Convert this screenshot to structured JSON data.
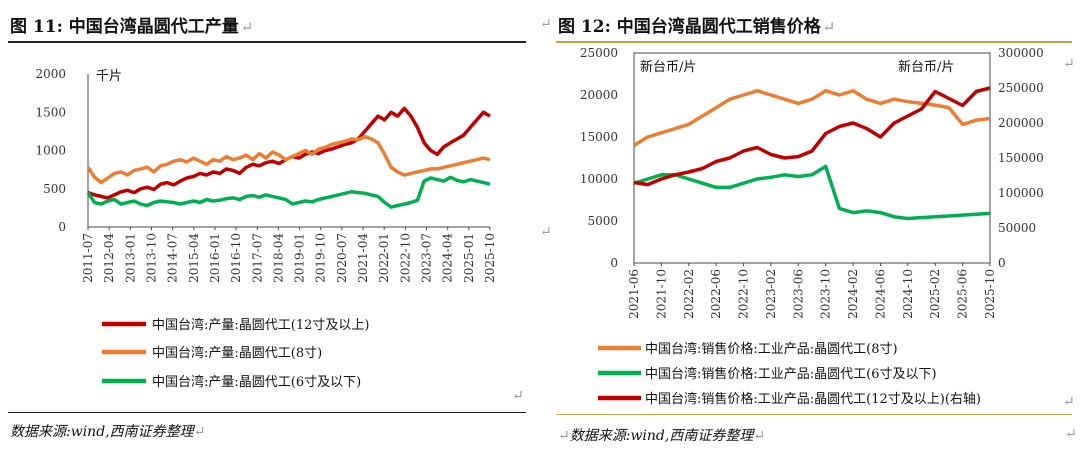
{
  "left": {
    "figure_label": "图 11:",
    "figure_title": "中国台湾晶圆代工产量",
    "return_mark": "↵",
    "source": "数据来源:wind,西南证券整理",
    "chart_data": {
      "type": "line",
      "unit": "千片",
      "ylim": [
        0,
        2000
      ],
      "yticks": [
        0,
        500,
        1000,
        1500,
        2000
      ],
      "x_tick_labels": [
        "2011-07",
        "2012-04",
        "2013-01",
        "2013-10",
        "2014-07",
        "2015-04",
        "2016-01",
        "2016-10",
        "2017-07",
        "2018-04",
        "2019-01",
        "2019-10",
        "2020-07",
        "2021-04",
        "2022-01",
        "2022-10",
        "2023-07",
        "2024-04",
        "2025-01",
        "2025-10"
      ],
      "series": [
        {
          "name": "中国台湾:产量:晶圆代工(12寸及以上)",
          "color": "#c00000",
          "values": [
            450,
            420,
            400,
            380,
            420,
            460,
            480,
            450,
            500,
            520,
            490,
            560,
            580,
            550,
            600,
            640,
            660,
            700,
            680,
            720,
            700,
            760,
            740,
            700,
            780,
            820,
            800,
            840,
            860,
            830,
            880,
            920,
            900,
            950,
            980,
            960,
            1000,
            1020,
            1050,
            1080,
            1100,
            1150,
            1250,
            1350,
            1450,
            1400,
            1500,
            1450,
            1550,
            1450,
            1300,
            1100,
            1000,
            950,
            1050,
            1100,
            1150,
            1200,
            1300,
            1400,
            1500,
            1450
          ]
        },
        {
          "name": "中国台湾:产量:晶圆代工(8寸)",
          "color": "#ed7d31",
          "values": [
            780,
            650,
            580,
            640,
            700,
            720,
            680,
            740,
            760,
            780,
            720,
            800,
            820,
            860,
            880,
            850,
            900,
            860,
            820,
            880,
            860,
            920,
            880,
            900,
            940,
            880,
            960,
            900,
            980,
            940,
            880,
            920,
            960,
            1000,
            950,
            1020,
            1040,
            1080,
            1100,
            1120,
            1150,
            1140,
            1180,
            1150,
            1100,
            950,
            780,
            720,
            680,
            700,
            720,
            740,
            760,
            760,
            780,
            800,
            820,
            840,
            860,
            880,
            900,
            880
          ]
        },
        {
          "name": "中国台湾:产量:晶圆代工(6寸及以下)",
          "color": "#00b050",
          "values": [
            450,
            320,
            300,
            340,
            360,
            300,
            320,
            340,
            300,
            280,
            320,
            340,
            330,
            320,
            300,
            320,
            340,
            320,
            360,
            340,
            350,
            370,
            380,
            360,
            400,
            410,
            390,
            420,
            400,
            380,
            360,
            300,
            320,
            340,
            330,
            360,
            380,
            400,
            420,
            440,
            460,
            450,
            440,
            420,
            400,
            320,
            260,
            280,
            300,
            320,
            350,
            600,
            640,
            620,
            600,
            650,
            610,
            590,
            620,
            600,
            580,
            560
          ]
        }
      ]
    }
  },
  "right": {
    "figure_label": "图 12:",
    "figure_title": "中国台湾晶圆代工销售价格",
    "return_mark": "↵",
    "source": "数据来源:wind,西南证券整理",
    "chart_data": {
      "type": "line",
      "left_unit": "新台币/片",
      "right_unit": "新台币/片",
      "ylim_left": [
        0,
        25000
      ],
      "yticks_left": [
        0,
        5000,
        10000,
        15000,
        20000,
        25000
      ],
      "ylim_right": [
        0,
        300000
      ],
      "yticks_right": [
        0,
        50000,
        100000,
        150000,
        200000,
        250000,
        300000
      ],
      "x_tick_labels": [
        "2021-06",
        "2021-10",
        "2022-02",
        "2022-06",
        "2022-10",
        "2023-02",
        "2023-06",
        "2023-10",
        "2024-02",
        "2024-06",
        "2024-10",
        "2025-02",
        "2025-06",
        "2025-10"
      ],
      "series": [
        {
          "name": "中国台湾:销售价格:工业产品:晶圆代工(8寸)",
          "axis": "left",
          "color": "#ed7d31",
          "values": [
            14000,
            15000,
            15500,
            16000,
            16500,
            17500,
            18500,
            19500,
            20000,
            20500,
            20000,
            19500,
            19000,
            19500,
            20500,
            20000,
            20500,
            19500,
            19000,
            19500,
            19200,
            19000,
            18800,
            18500,
            16500,
            17000,
            17200
          ]
        },
        {
          "name": "中国台湾:销售价格:工业产品:晶圆代工(6寸及以下)",
          "axis": "left",
          "color": "#00b050",
          "values": [
            9500,
            10000,
            10500,
            10500,
            10000,
            9500,
            9000,
            9000,
            9500,
            10000,
            10200,
            10500,
            10300,
            10500,
            11500,
            6500,
            6000,
            6200,
            6000,
            5500,
            5300,
            5400,
            5500,
            5600,
            5700,
            5800,
            5900
          ]
        },
        {
          "name": "中国台湾:销售价格:工业产品:晶圆代工(12寸及以上)(右轴)",
          "axis": "right",
          "color": "#c00000",
          "values": [
            115000,
            112000,
            120000,
            126000,
            130000,
            135000,
            145000,
            150000,
            160000,
            165000,
            155000,
            150000,
            152000,
            160000,
            185000,
            195000,
            200000,
            192000,
            180000,
            200000,
            210000,
            220000,
            245000,
            235000,
            225000,
            245000,
            250000
          ]
        }
      ]
    }
  }
}
